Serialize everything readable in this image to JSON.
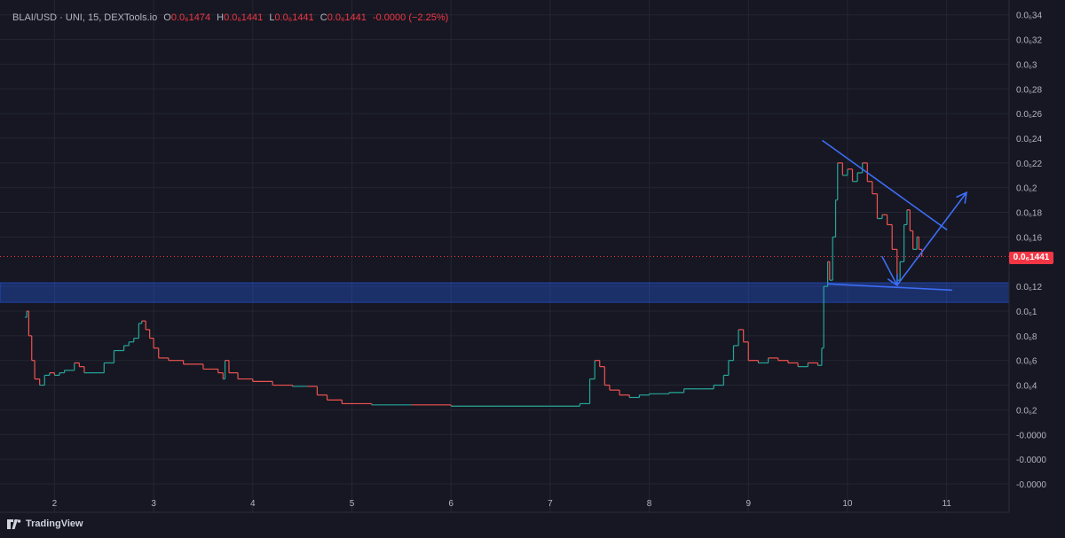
{
  "header": {
    "symbol": "BLAI/USD · UNI, 15, DEXTools.io",
    "open_label": "O",
    "open_value": "0.0₆1474",
    "high_label": "H",
    "high_value": "0.0₆1441",
    "low_label": "L",
    "low_value": "0.0₆1441",
    "close_label": "C",
    "close_value": "0.0₆1441",
    "change": "-0.0000 (−2.25%)"
  },
  "price_tag": "0.0₆1441",
  "branding": {
    "name": "TradingView"
  },
  "colors": {
    "background": "#161722",
    "grid": "#232633",
    "text": "#b2b5be",
    "up": "#26a69a",
    "down": "#ef5350",
    "price_line": "#f23645",
    "zone": "#2962ff",
    "drawing": "#3d6df5"
  },
  "chart_data": {
    "type": "candlestick",
    "title": "BLAI/USD · UNI, 15, DEXTools.io",
    "x_ticks": [
      {
        "label": "2",
        "x": 2
      },
      {
        "label": "3",
        "x": 3
      },
      {
        "label": "4",
        "x": 4
      },
      {
        "label": "5",
        "x": 5
      },
      {
        "label": "6",
        "x": 6
      },
      {
        "label": "7",
        "x": 7
      },
      {
        "label": "8",
        "x": 8
      },
      {
        "label": "9",
        "x": 9
      },
      {
        "label": "10",
        "x": 10
      },
      {
        "label": "11",
        "x": 11
      }
    ],
    "xlim": [
      1.45,
      11.63
    ],
    "ylim": [
      -0.063,
      0.352
    ],
    "y_ticks": [
      {
        "label": "0.0₆34",
        "v": 0.34
      },
      {
        "label": "0.0₆32",
        "v": 0.32
      },
      {
        "label": "0.0₆3",
        "v": 0.3
      },
      {
        "label": "0.0₆28",
        "v": 0.28
      },
      {
        "label": "0.0₆26",
        "v": 0.26
      },
      {
        "label": "0.0₆24",
        "v": 0.24
      },
      {
        "label": "0.0₆22",
        "v": 0.22
      },
      {
        "label": "0.0₆2",
        "v": 0.2
      },
      {
        "label": "0.0₆18",
        "v": 0.18
      },
      {
        "label": "0.0₆16",
        "v": 0.16
      },
      {
        "label": "0.0₆12",
        "v": 0.12
      },
      {
        "label": "0.0₆1",
        "v": 0.1
      },
      {
        "label": "0.0₆8",
        "v": 0.08
      },
      {
        "label": "0.0₆6",
        "v": 0.06
      },
      {
        "label": "0.0₆4",
        "v": 0.04
      },
      {
        "label": "0.0₆2",
        "v": 0.02
      },
      {
        "label": "-0.0000",
        "v": 0.0
      },
      {
        "label": "-0.0000",
        "v": -0.02
      },
      {
        "label": "-0.0000",
        "v": -0.04
      }
    ],
    "current_price": 0.1441,
    "support_zone": [
      0.107,
      0.123
    ],
    "price_path": [
      [
        1.7,
        0.095
      ],
      [
        1.72,
        0.1
      ],
      [
        1.74,
        0.08
      ],
      [
        1.77,
        0.06
      ],
      [
        1.8,
        0.045
      ],
      [
        1.85,
        0.04
      ],
      [
        1.9,
        0.048
      ],
      [
        1.95,
        0.05
      ],
      [
        2.0,
        0.048
      ],
      [
        2.05,
        0.05
      ],
      [
        2.1,
        0.052
      ],
      [
        2.2,
        0.058
      ],
      [
        2.25,
        0.055
      ],
      [
        2.3,
        0.05
      ],
      [
        2.4,
        0.05
      ],
      [
        2.5,
        0.058
      ],
      [
        2.6,
        0.068
      ],
      [
        2.7,
        0.072
      ],
      [
        2.75,
        0.075
      ],
      [
        2.8,
        0.078
      ],
      [
        2.85,
        0.09
      ],
      [
        2.88,
        0.092
      ],
      [
        2.92,
        0.085
      ],
      [
        2.96,
        0.078
      ],
      [
        3.0,
        0.07
      ],
      [
        3.05,
        0.062
      ],
      [
        3.15,
        0.06
      ],
      [
        3.3,
        0.057
      ],
      [
        3.5,
        0.053
      ],
      [
        3.65,
        0.05
      ],
      [
        3.7,
        0.045
      ],
      [
        3.72,
        0.06
      ],
      [
        3.76,
        0.05
      ],
      [
        3.85,
        0.045
      ],
      [
        4.0,
        0.043
      ],
      [
        4.2,
        0.04
      ],
      [
        4.4,
        0.039
      ],
      [
        4.55,
        0.039
      ],
      [
        4.65,
        0.032
      ],
      [
        4.75,
        0.028
      ],
      [
        4.9,
        0.025
      ],
      [
        5.2,
        0.024
      ],
      [
        5.6,
        0.024
      ],
      [
        6.0,
        0.023
      ],
      [
        6.5,
        0.023
      ],
      [
        7.0,
        0.023
      ],
      [
        7.3,
        0.025
      ],
      [
        7.4,
        0.045
      ],
      [
        7.45,
        0.06
      ],
      [
        7.5,
        0.055
      ],
      [
        7.55,
        0.04
      ],
      [
        7.6,
        0.036
      ],
      [
        7.7,
        0.032
      ],
      [
        7.8,
        0.03
      ],
      [
        7.9,
        0.032
      ],
      [
        8.0,
        0.033
      ],
      [
        8.2,
        0.034
      ],
      [
        8.35,
        0.037
      ],
      [
        8.5,
        0.037
      ],
      [
        8.65,
        0.04
      ],
      [
        8.75,
        0.048
      ],
      [
        8.8,
        0.06
      ],
      [
        8.85,
        0.072
      ],
      [
        8.9,
        0.085
      ],
      [
        8.95,
        0.075
      ],
      [
        9.0,
        0.06
      ],
      [
        9.1,
        0.058
      ],
      [
        9.2,
        0.062
      ],
      [
        9.3,
        0.06
      ],
      [
        9.4,
        0.058
      ],
      [
        9.5,
        0.055
      ],
      [
        9.6,
        0.058
      ],
      [
        9.7,
        0.056
      ],
      [
        9.74,
        0.07
      ],
      [
        9.76,
        0.12
      ],
      [
        9.8,
        0.14
      ],
      [
        9.82,
        0.125
      ],
      [
        9.85,
        0.16
      ],
      [
        9.88,
        0.19
      ],
      [
        9.9,
        0.22
      ],
      [
        9.95,
        0.21
      ],
      [
        10.0,
        0.215
      ],
      [
        10.05,
        0.205
      ],
      [
        10.1,
        0.212
      ],
      [
        10.15,
        0.22
      ],
      [
        10.2,
        0.205
      ],
      [
        10.25,
        0.195
      ],
      [
        10.3,
        0.175
      ],
      [
        10.35,
        0.178
      ],
      [
        10.4,
        0.17
      ],
      [
        10.45,
        0.15
      ],
      [
        10.5,
        0.125
      ],
      [
        10.53,
        0.14
      ],
      [
        10.57,
        0.17
      ],
      [
        10.6,
        0.182
      ],
      [
        10.63,
        0.165
      ],
      [
        10.66,
        0.15
      ],
      [
        10.7,
        0.16
      ],
      [
        10.72,
        0.15
      ],
      [
        10.75,
        0.1441
      ]
    ],
    "drawings": {
      "triangle_top": [
        [
          9.75,
          0.238
        ],
        [
          11.0,
          0.166
        ]
      ],
      "triangle_bottom": [
        [
          9.8,
          0.122
        ],
        [
          11.05,
          0.117
        ]
      ],
      "arrow_down": [
        [
          10.35,
          0.144
        ],
        [
          10.5,
          0.121
        ]
      ],
      "arrow_up": [
        [
          10.5,
          0.121
        ],
        [
          11.2,
          0.196
        ]
      ]
    }
  }
}
